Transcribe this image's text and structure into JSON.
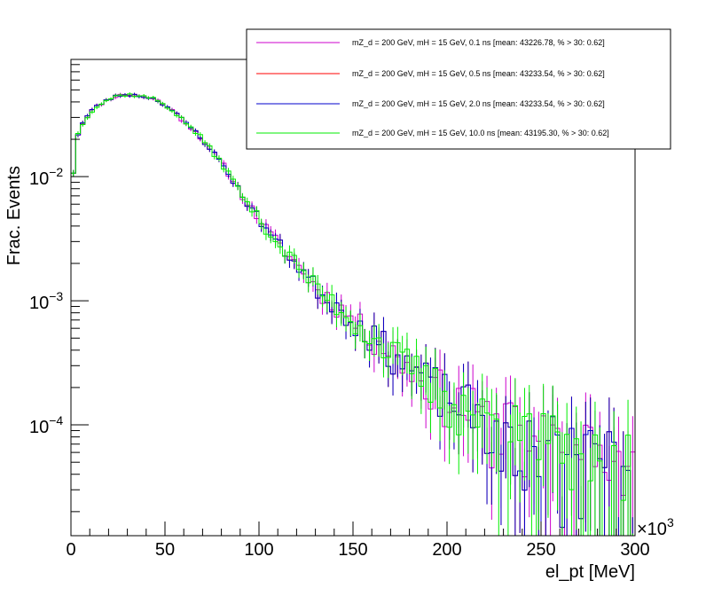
{
  "chart_data": {
    "type": "line",
    "title": "",
    "xlabel": "el_pt [MeV]",
    "ylabel": "Frac. Events",
    "x_multiplier_label": "×10",
    "x_multiplier_exp": "3",
    "xlim": [
      0,
      300
    ],
    "ylim": [
      1.28e-05,
      0.088
    ],
    "yscale": "log",
    "x_ticks": [
      0,
      50,
      100,
      150,
      200,
      250,
      300
    ],
    "x_tick_labels": [
      "0",
      "50",
      "100",
      "150",
      "200",
      "250",
      "300"
    ],
    "y_ticks": [
      0.0001,
      0.001,
      0.01
    ],
    "y_tick_labels": [
      {
        "base": "10",
        "exp": "−4"
      },
      {
        "base": "10",
        "exp": "−3"
      },
      {
        "base": "10",
        "exp": "−2"
      }
    ],
    "legend_position": "top-right",
    "bin_width": 2.5,
    "series": [
      {
        "name": "mZ_d = 200 GeV, mH = 15 GeV, 0.1 ns [mean: 43226.78, % > 30: 0.62]",
        "color": "#cc00cc",
        "seed": 11
      },
      {
        "name": "mZ_d = 200 GeV, mH = 15 GeV, 0.5 ns [mean: 43233.54, % > 30: 0.62]",
        "color": "#ff0000",
        "seed": 23
      },
      {
        "name": "mZ_d = 200 GeV, mH = 15 GeV, 2.0 ns [mean: 43233.54, % > 30: 0.62]",
        "color": "#0000cc",
        "seed": 23
      },
      {
        "name": "mZ_d = 200 GeV, mH = 15 GeV, 10.0 ns [mean: 43195.30, % > 30: 0.62]",
        "color": "#00ee00",
        "seed": 37
      }
    ],
    "shape_points": {
      "x": [
        1.25,
        3.75,
        6.25,
        10,
        15,
        20,
        25,
        30,
        35,
        40,
        45,
        50,
        55,
        60,
        65,
        70,
        75,
        80,
        85,
        90,
        95,
        100,
        105,
        110,
        115,
        120,
        125,
        130,
        135,
        140,
        145,
        150,
        155,
        160,
        165,
        170,
        175,
        180,
        185,
        190,
        195,
        200,
        210,
        220,
        230,
        240,
        250,
        260,
        270,
        280,
        290,
        300
      ],
      "y": [
        0.011,
        0.022,
        0.027,
        0.033,
        0.038,
        0.042,
        0.045,
        0.046,
        0.045,
        0.044,
        0.042,
        0.038,
        0.033,
        0.028,
        0.024,
        0.02,
        0.016,
        0.013,
        0.01,
        0.0075,
        0.0058,
        0.0046,
        0.0036,
        0.0029,
        0.0024,
        0.002,
        0.0016,
        0.0013,
        0.0011,
        0.00095,
        0.00082,
        0.0007,
        0.0006,
        0.00052,
        0.00045,
        0.00039,
        0.00034,
        0.0003,
        0.00026,
        0.00022,
        0.0002,
        0.00017,
        0.00014,
        0.00011,
        0.0001,
        8.5e-05,
        7.5e-05,
        6.8e-05,
        6e-05,
        5.5e-05,
        5e-05,
        4.5e-05
      ]
    }
  }
}
